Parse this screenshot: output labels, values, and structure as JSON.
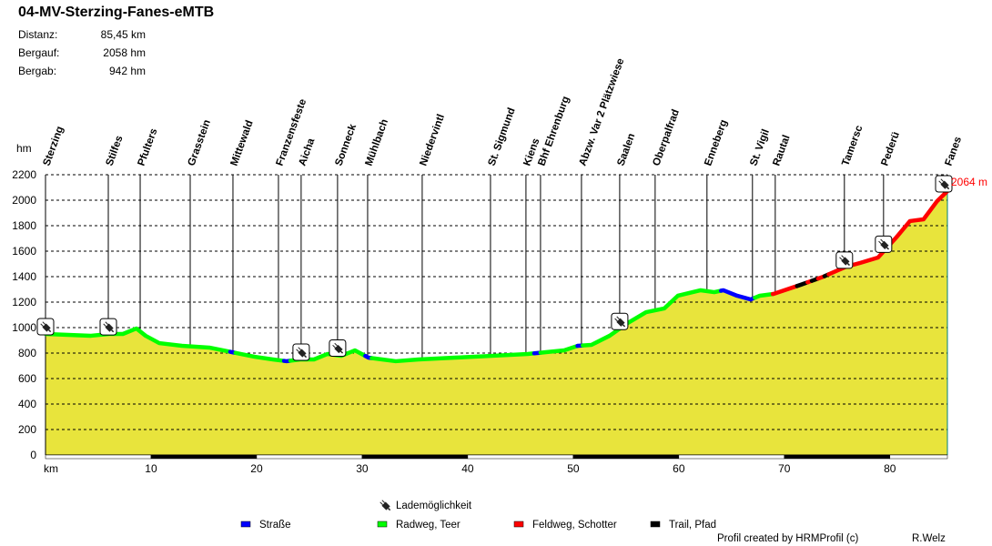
{
  "title": "04-MV-Sterzing-Fanes-eMTB",
  "stats": [
    {
      "label": "Distanz:",
      "value": "85,45 km"
    },
    {
      "label": "Bergauf:",
      "value": "2058 hm"
    },
    {
      "label": "Bergab:",
      "value": "942 hm"
    }
  ],
  "credit": "Profil created by HRMProfil (c)",
  "author": "R.Welz",
  "chart_data": {
    "type": "area",
    "title": "04-MV-Sterzing-Fanes-eMTB",
    "xlabel": "km",
    "ylabel": "hm",
    "xlim": [
      0,
      85.45
    ],
    "ylim": [
      0,
      2200
    ],
    "xticks": [
      10,
      20,
      30,
      40,
      50,
      60,
      70,
      80
    ],
    "yticks": [
      0,
      200,
      400,
      600,
      800,
      1000,
      1200,
      1400,
      1600,
      1800,
      2000,
      2200
    ],
    "grid": true,
    "end_label": "2064 m",
    "profile": [
      [
        0,
        943
      ],
      [
        4.31,
        929
      ],
      [
        6.03,
        943
      ],
      [
        7.33,
        943
      ],
      [
        8.62,
        986
      ],
      [
        9.48,
        929
      ],
      [
        10.78,
        871
      ],
      [
        12.93,
        850
      ],
      [
        15.52,
        836
      ],
      [
        17.67,
        800
      ],
      [
        19.83,
        764
      ],
      [
        21.55,
        743
      ],
      [
        22.84,
        729
      ],
      [
        24.14,
        743
      ],
      [
        25.43,
        743
      ],
      [
        26.72,
        786
      ],
      [
        28.02,
        771
      ],
      [
        29.31,
        814
      ],
      [
        30.6,
        757
      ],
      [
        31.9,
        743
      ],
      [
        33.19,
        729
      ],
      [
        35.34,
        743
      ],
      [
        38.79,
        757
      ],
      [
        42.24,
        771
      ],
      [
        45.69,
        786
      ],
      [
        47.41,
        800
      ],
      [
        49.14,
        814
      ],
      [
        50.43,
        850
      ],
      [
        51.72,
        857
      ],
      [
        53.45,
        929
      ],
      [
        55.17,
        1029
      ],
      [
        56.9,
        1114
      ],
      [
        58.62,
        1143
      ],
      [
        59.91,
        1243
      ],
      [
        62.07,
        1286
      ],
      [
        63.36,
        1271
      ],
      [
        64.22,
        1286
      ],
      [
        65.52,
        1243
      ],
      [
        66.81,
        1214
      ],
      [
        67.67,
        1243
      ],
      [
        68.97,
        1257
      ],
      [
        71.55,
        1329
      ],
      [
        73.71,
        1393
      ],
      [
        75.86,
        1471
      ],
      [
        77.16,
        1500
      ],
      [
        78.88,
        1543
      ],
      [
        80.6,
        1700
      ],
      [
        81.9,
        1829
      ],
      [
        83.19,
        1843
      ],
      [
        84.48,
        1986
      ],
      [
        85.45,
        2064
      ]
    ],
    "surfaces": [
      {
        "from": 0,
        "to": 17.5,
        "type": "radweg"
      },
      {
        "from": 17.5,
        "to": 18.0,
        "type": "strasse"
      },
      {
        "from": 18.0,
        "to": 22.6,
        "type": "radweg"
      },
      {
        "from": 22.6,
        "to": 23.2,
        "type": "strasse"
      },
      {
        "from": 23.2,
        "to": 30.3,
        "type": "radweg"
      },
      {
        "from": 30.3,
        "to": 30.9,
        "type": "strasse"
      },
      {
        "from": 30.9,
        "to": 46.3,
        "type": "radweg"
      },
      {
        "from": 46.3,
        "to": 46.9,
        "type": "strasse"
      },
      {
        "from": 46.9,
        "to": 50.4,
        "type": "radweg"
      },
      {
        "from": 50.4,
        "to": 50.9,
        "type": "strasse"
      },
      {
        "from": 50.9,
        "to": 64.0,
        "type": "radweg"
      },
      {
        "from": 64.0,
        "to": 67.2,
        "type": "strasse"
      },
      {
        "from": 67.2,
        "to": 68.9,
        "type": "radweg"
      },
      {
        "from": 68.9,
        "to": 71.2,
        "type": "feldweg"
      },
      {
        "from": 71.2,
        "to": 72.2,
        "type": "trail"
      },
      {
        "from": 72.2,
        "to": 72.6,
        "type": "feldweg"
      },
      {
        "from": 72.6,
        "to": 73.2,
        "type": "trail"
      },
      {
        "from": 73.2,
        "to": 73.8,
        "type": "feldweg"
      },
      {
        "from": 73.8,
        "to": 74.2,
        "type": "trail"
      },
      {
        "from": 74.2,
        "to": 85.45,
        "type": "feldweg"
      }
    ],
    "stations": [
      {
        "name": "Sterzing",
        "km": 0,
        "charging": true
      },
      {
        "name": "Stilfes",
        "km": 5.95,
        "charging": true
      },
      {
        "name": "Pfulters",
        "km": 8.97,
        "charging": false
      },
      {
        "name": "Grasstein",
        "km": 13.71,
        "charging": false
      },
      {
        "name": "Mittewald",
        "km": 17.76,
        "charging": false
      },
      {
        "name": "Franzensfeste",
        "km": 22.07,
        "charging": false
      },
      {
        "name": "Aicha",
        "km": 24.22,
        "charging": true
      },
      {
        "name": "Sonneck",
        "km": 27.67,
        "charging": true
      },
      {
        "name": "Mühlbach",
        "km": 30.52,
        "charging": false
      },
      {
        "name": "Niedervintl",
        "km": 35.69,
        "charging": false
      },
      {
        "name": "St. Sigmund",
        "km": 42.16,
        "charging": false
      },
      {
        "name": "Kiens",
        "km": 45.52,
        "charging": false
      },
      {
        "name": "Bhf Ehrenburg",
        "km": 46.9,
        "charging": false
      },
      {
        "name": "Abzw. Var 2 Plätzwiese",
        "km": 50.78,
        "charging": false
      },
      {
        "name": "Saalen",
        "km": 54.4,
        "charging": true
      },
      {
        "name": "Oberpalfrad",
        "km": 57.76,
        "charging": false
      },
      {
        "name": "Enneberg",
        "km": 62.67,
        "charging": false
      },
      {
        "name": "St. Vigil",
        "km": 66.98,
        "charging": false
      },
      {
        "name": "Rautal",
        "km": 69.14,
        "charging": false
      },
      {
        "name": "Tamersc",
        "km": 75.69,
        "charging": true
      },
      {
        "name": "Pederü",
        "km": 79.4,
        "charging": true
      },
      {
        "name": "Fanes",
        "km": 85.45,
        "charging": true
      }
    ],
    "legend": {
      "charging_label": "Lademöglichkeit",
      "items": [
        {
          "key": "strasse",
          "label": "Straße",
          "color": "#0000ff"
        },
        {
          "key": "radweg",
          "label": "Radweg, Teer",
          "color": "#00ff00"
        },
        {
          "key": "feldweg",
          "label": "Feldweg, Schotter",
          "color": "#ff0000"
        },
        {
          "key": "trail",
          "label": "Trail, Pfad",
          "color": "#000000"
        }
      ]
    }
  }
}
